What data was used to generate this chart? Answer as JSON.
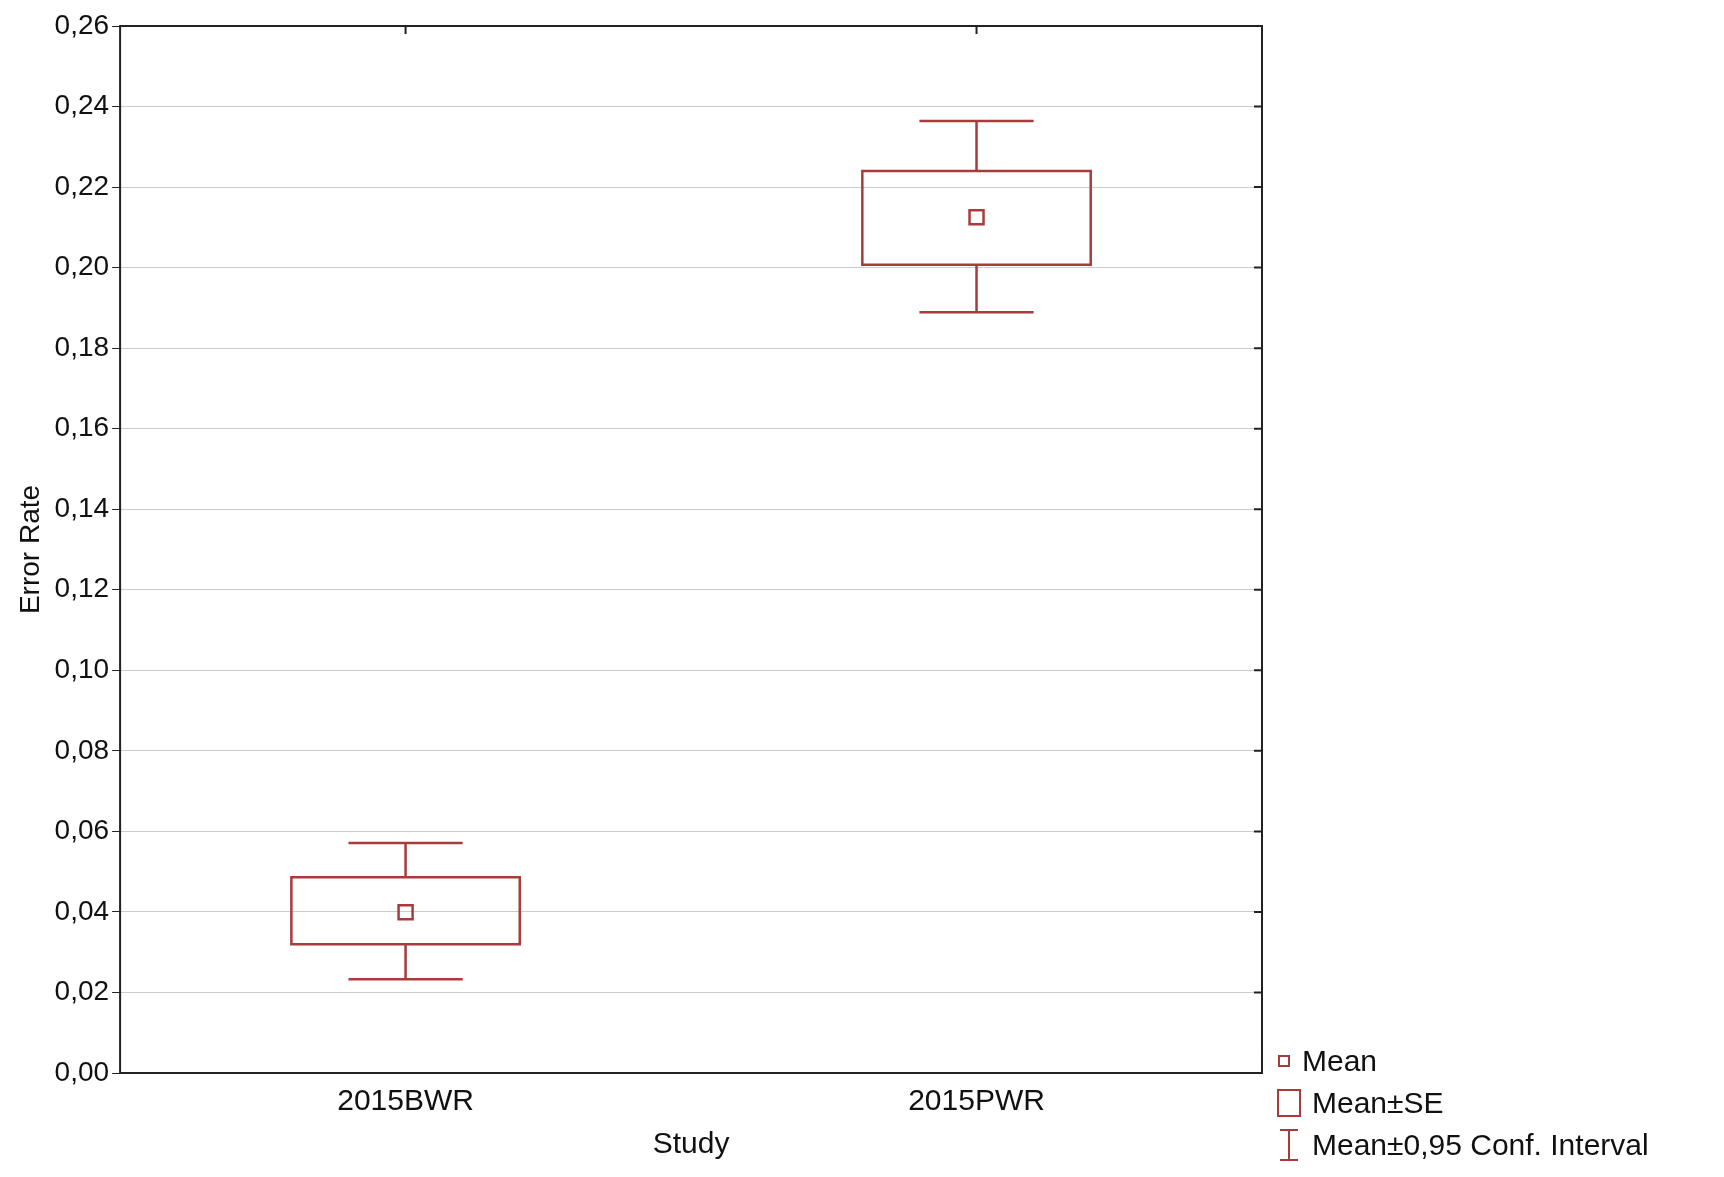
{
  "chart_data": {
    "type": "box",
    "xlabel": "Study",
    "ylabel": "Error Rate",
    "categories": [
      "2015BWR",
      "2015PWR"
    ],
    "color": "#a83c3c",
    "boxes": [
      {
        "low": 0.0233,
        "q1": 0.032,
        "mean": 0.0399,
        "q3": 0.0486,
        "high": 0.0571
      },
      {
        "low": 0.1889,
        "q1": 0.2007,
        "mean": 0.2125,
        "q3": 0.224,
        "high": 0.2364
      }
    ],
    "ylim": [
      0,
      0.26
    ],
    "yticks": [
      {
        "value": 0,
        "label": "0,00"
      },
      {
        "value": 0.02,
        "label": "0,02"
      },
      {
        "value": 0.04,
        "label": "0,04"
      },
      {
        "value": 0.06,
        "label": "0,06"
      },
      {
        "value": 0.08,
        "label": "0,08"
      },
      {
        "value": 0.1,
        "label": "0,10"
      },
      {
        "value": 0.12,
        "label": "0,12"
      },
      {
        "value": 0.14,
        "label": "0,14"
      },
      {
        "value": 0.16,
        "label": "0,16"
      },
      {
        "value": 0.18,
        "label": "0,18"
      },
      {
        "value": 0.2,
        "label": "0,20"
      },
      {
        "value": 0.22,
        "label": "0,22"
      },
      {
        "value": 0.24,
        "label": "0,24"
      },
      {
        "value": 0.26,
        "label": "0,26"
      }
    ],
    "grid": "y",
    "annotations": [
      "Mean",
      "Mean±SE",
      "Mean±0,95 Conf. Interval"
    ]
  }
}
